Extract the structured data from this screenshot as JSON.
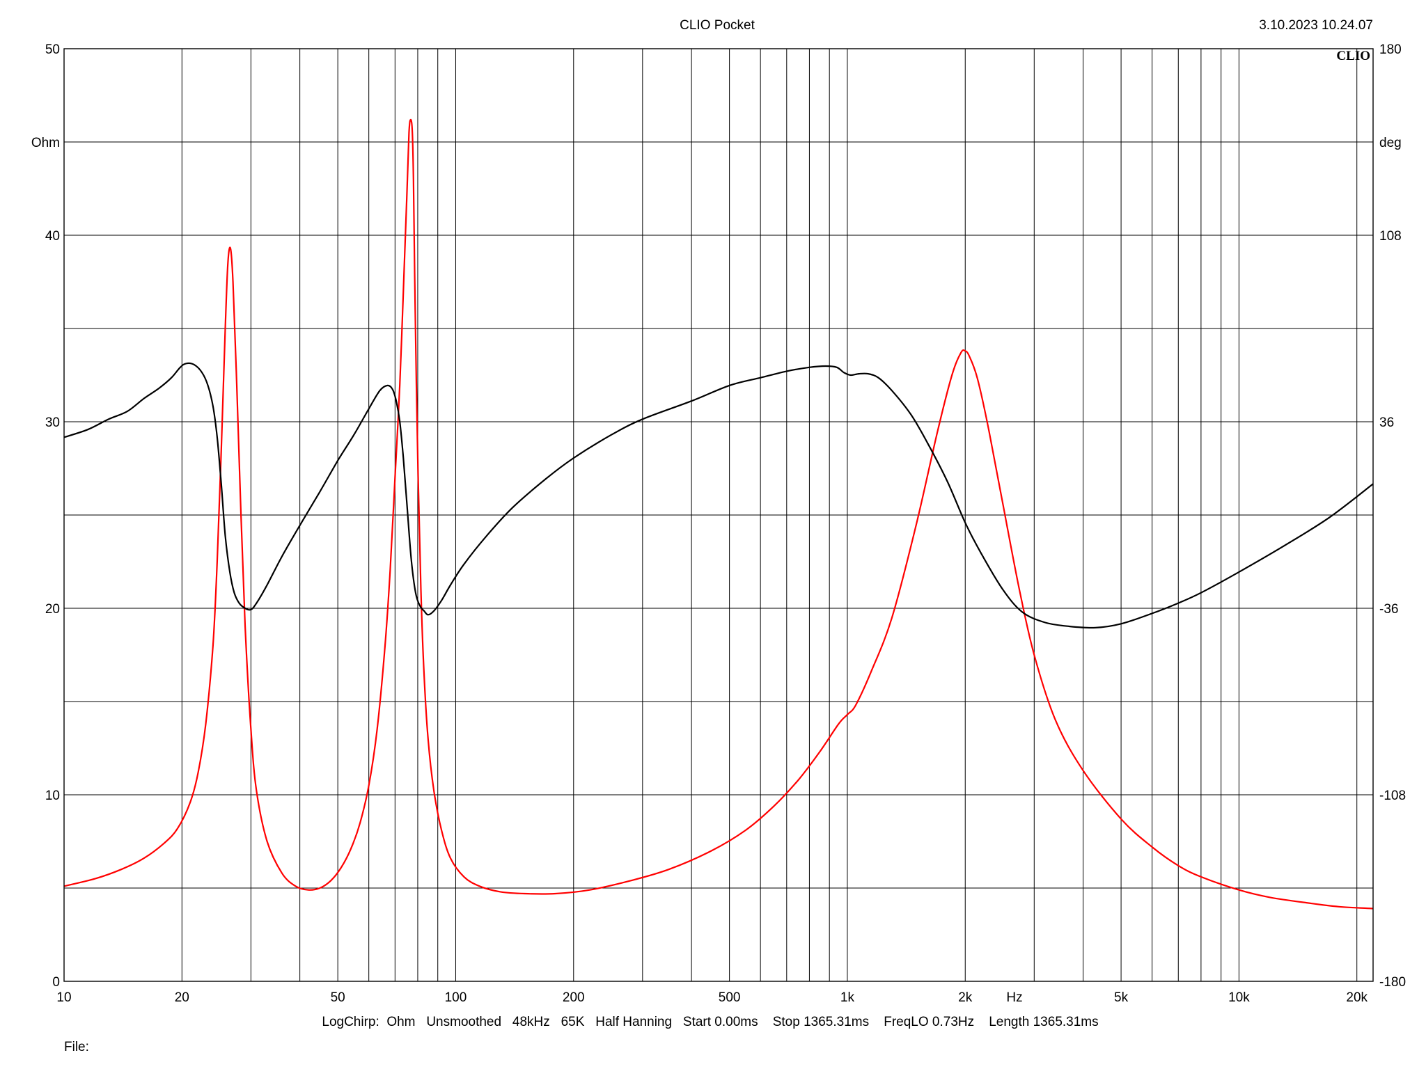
{
  "window": {
    "title": "CLIO Pocket",
    "timestamp": "3.10.2023 10.24.07",
    "logo": "CLIO",
    "settings_line": "LogChirp:  Ohm   Unsmoothed   48kHz   65K   Half Hanning   Start 0.00ms    Stop 1365.31ms    FreqLO 0.73Hz    Length 1365.31ms",
    "file_label": "File:"
  },
  "chart_data": {
    "type": "line",
    "x_scale": "log",
    "xlim": [
      10,
      22000
    ],
    "x_unit_label": "Hz",
    "x_tick_labels": [
      {
        "value": 10,
        "label": "10"
      },
      {
        "value": 20,
        "label": "20"
      },
      {
        "value": 50,
        "label": "50"
      },
      {
        "value": 100,
        "label": "100"
      },
      {
        "value": 200,
        "label": "200"
      },
      {
        "value": 500,
        "label": "500"
      },
      {
        "value": 1000,
        "label": "1k"
      },
      {
        "value": 2000,
        "label": "2k"
      },
      {
        "value": 5000,
        "label": "5k"
      },
      {
        "value": 10000,
        "label": "10k"
      },
      {
        "value": 20000,
        "label": "20k"
      }
    ],
    "x_gridlines": [
      10,
      20,
      30,
      40,
      50,
      60,
      70,
      80,
      90,
      100,
      200,
      300,
      400,
      500,
      600,
      700,
      800,
      900,
      1000,
      2000,
      3000,
      4000,
      5000,
      6000,
      7000,
      8000,
      9000,
      10000,
      20000
    ],
    "y_left": {
      "unit_label": "Ohm",
      "ylim": [
        0,
        50
      ],
      "ticks": [
        0,
        10,
        20,
        30,
        40,
        50
      ],
      "tick_labels": [
        "0",
        "10",
        "20",
        "30",
        "40",
        "50"
      ],
      "gridlines": [
        0,
        5,
        10,
        15,
        20,
        25,
        30,
        35,
        40,
        45,
        50
      ]
    },
    "y_right": {
      "unit_label": "deg",
      "ylim": [
        -180,
        180
      ],
      "ticks": [
        -180,
        -108,
        -36,
        36,
        108,
        180
      ],
      "tick_labels": [
        "-180",
        "-108",
        "-36",
        "36",
        "108",
        "180"
      ]
    },
    "grid": true,
    "series": [
      {
        "color": "#ff0000",
        "axis": "left",
        "x": [
          10,
          12,
          14,
          16,
          18,
          19.5,
          21,
          22,
          23,
          24,
          24.6,
          25.2,
          25.8,
          26.2,
          26.6,
          27,
          27.6,
          28.3,
          29,
          30,
          31,
          33,
          36,
          39,
          42,
          45,
          48,
          51,
          54,
          57,
          60,
          63,
          66,
          68,
          70,
          72,
          73.5,
          75,
          76,
          76.8,
          77.5,
          78,
          78.8,
          80,
          81.5,
          83,
          85,
          88,
          92,
          97,
          105,
          115,
          130,
          150,
          180,
          220,
          280,
          350,
          450,
          550,
          650,
          750,
          850,
          950,
          1000,
          1050,
          1150,
          1300,
          1500,
          1700,
          1850,
          1950,
          2000,
          2050,
          2150,
          2300,
          2500,
          2750,
          3000,
          3400,
          4000,
          5000,
          6000,
          7000,
          8000,
          10000,
          12000,
          15000,
          18000,
          22000
        ],
        "y": [
          5.1,
          5.5,
          6.0,
          6.6,
          7.4,
          8.2,
          9.6,
          11.2,
          13.8,
          18.0,
          22.5,
          28.5,
          35.0,
          38.5,
          39.3,
          37.5,
          32.0,
          25.0,
          19.0,
          13.5,
          10.2,
          7.5,
          5.8,
          5.1,
          4.9,
          5.0,
          5.4,
          6.1,
          7.1,
          8.5,
          10.5,
          13.5,
          18.0,
          22.0,
          27.0,
          32.0,
          37.0,
          42.0,
          45.5,
          46.2,
          45.5,
          43.0,
          36.0,
          28.0,
          21.0,
          16.5,
          13.0,
          10.2,
          8.1,
          6.6,
          5.6,
          5.1,
          4.8,
          4.7,
          4.7,
          4.9,
          5.4,
          6.0,
          7.0,
          8.1,
          9.4,
          10.8,
          12.3,
          13.8,
          14.3,
          14.8,
          16.6,
          19.5,
          24.5,
          29.5,
          32.5,
          33.7,
          33.8,
          33.5,
          32.3,
          29.5,
          25.5,
          21.0,
          17.5,
          14.0,
          11.3,
          8.7,
          7.2,
          6.2,
          5.6,
          4.9,
          4.5,
          4.2,
          4.0,
          3.9
        ]
      },
      {
        "color": "#000000",
        "axis": "right",
        "x": [
          10,
          11.5,
          13,
          14.5,
          16,
          17.5,
          18.8,
          19.8,
          20.5,
          21.5,
          22.5,
          23.3,
          24,
          24.6,
          25.2,
          25.8,
          26.5,
          27.2,
          28,
          29,
          30,
          31,
          33,
          36,
          40,
          45,
          50,
          55,
          60,
          64,
          67,
          69,
          70.5,
          72,
          73.5,
          75,
          77,
          79,
          81,
          83,
          85,
          88,
          92,
          97,
          105,
          120,
          140,
          170,
          200,
          250,
          300,
          400,
          500,
          600,
          700,
          800,
          880,
          940,
          980,
          1020,
          1070,
          1130,
          1200,
          1300,
          1450,
          1600,
          1800,
          2000,
          2200,
          2500,
          2800,
          3200,
          3700,
          4300,
          5000,
          6000,
          7000,
          8000,
          10000,
          13000,
          17000,
          22000
        ],
        "y": [
          30,
          33,
          37,
          40,
          45,
          49,
          53,
          57,
          58.5,
          58,
          55,
          50,
          42,
          30,
          12,
          -8,
          -22,
          -30,
          -34,
          -36,
          -36.5,
          -34,
          -27,
          -16,
          -4,
          9,
          21,
          31,
          41,
          48,
          50,
          48.5,
          44,
          36,
          22,
          5,
          -17,
          -30,
          -35,
          -37,
          -38.5,
          -37,
          -33,
          -27,
          -19,
          -8,
          3,
          14,
          22,
          31,
          37,
          44,
          50,
          53,
          55.5,
          57,
          57.5,
          57,
          55,
          54,
          54.5,
          54.5,
          53,
          48,
          39,
          28,
          13,
          -3,
          -15,
          -29,
          -37.5,
          -41.5,
          -43,
          -43.5,
          -42,
          -38,
          -34,
          -30,
          -22,
          -12,
          -1,
          12
        ]
      }
    ]
  }
}
